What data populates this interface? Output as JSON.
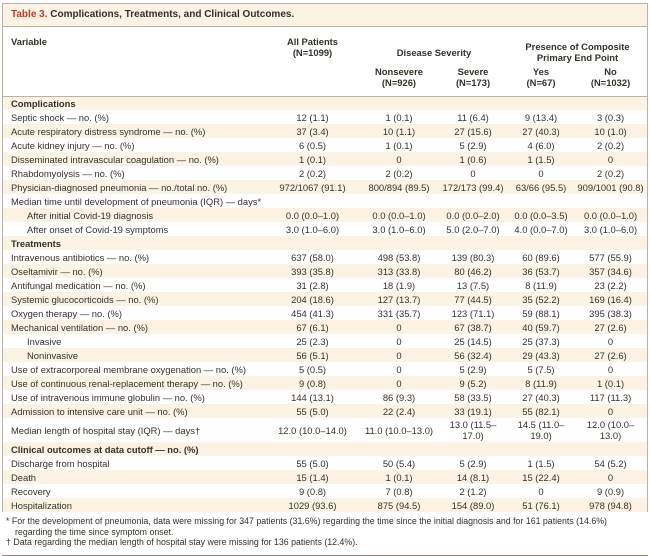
{
  "colors": {
    "accent_red": "#b73a2e",
    "row_cream": "#fcf3e4",
    "rule_gray": "#b9b3a7",
    "text": "#35312a"
  },
  "table": {
    "title_prefix": "Table 3.",
    "title_text": "Complications, Treatments, and Clinical Outcomes.",
    "header": {
      "variable": "Variable",
      "all_patients": "All Patients\n(N=1099)",
      "disease_severity": "Disease Severity",
      "composite_endpoint": "Presence of Composite Primary End Point",
      "subcols": [
        "Nonsevere\n(N=926)",
        "Severe\n(N=173)",
        "Yes\n(N=67)",
        "No\n(N=1032)"
      ]
    },
    "rows": [
      {
        "type": "section",
        "label": "Complications"
      },
      {
        "type": "data",
        "label": "Septic shock — no. (%)",
        "values": [
          "12 (1.1)",
          "1 (0.1)",
          "11 (6.4)",
          "9 (13.4)",
          "3 (0.3)"
        ]
      },
      {
        "type": "data",
        "label": "Acute respiratory distress syndrome — no. (%)",
        "values": [
          "37 (3.4)",
          "10 (1.1)",
          "27 (15.6)",
          "27 (40.3)",
          "10 (1.0)"
        ]
      },
      {
        "type": "data",
        "label": "Acute kidney injury — no. (%)",
        "values": [
          "6 (0.5)",
          "1 (0.1)",
          "5 (2.9)",
          "4 (6.0)",
          "2 (0.2)"
        ]
      },
      {
        "type": "data",
        "label": "Disseminated intravascular coagulation — no. (%)",
        "values": [
          "1 (0.1)",
          "0",
          "1 (0.6)",
          "1 (1.5)",
          "0"
        ]
      },
      {
        "type": "data",
        "label": "Rhabdomyolysis — no. (%)",
        "values": [
          "2 (0.2)",
          "2 (0.2)",
          "0",
          "0",
          "2 (0.2)"
        ]
      },
      {
        "type": "data",
        "label": "Physician-diagnosed pneumonia — no./total no. (%)",
        "values": [
          "972/1067 (91.1)",
          "800/894 (89.5)",
          "172/173 (99.4)",
          "63/66 (95.5)",
          "909/1001 (90.8)"
        ]
      },
      {
        "type": "label",
        "label": "Median time until development of pneumonia (IQR) — days*"
      },
      {
        "type": "data",
        "indent": true,
        "label": "After initial Covid-19 diagnosis",
        "values": [
          "0.0 (0.0–1.0)",
          "0.0 (0.0–1.0)",
          "0.0 (0.0–2.0)",
          "0.0 (0.0–3.5)",
          "0.0 (0.0–1.0)"
        ]
      },
      {
        "type": "data",
        "indent": true,
        "label": "After onset of Covid-19 symptoms",
        "values": [
          "3.0 (1.0–6.0)",
          "3.0 (1.0–6.0)",
          "5.0 (2.0–7.0)",
          "4.0 (0.0–7.0)",
          "3.0 (1.0–6.0)"
        ]
      },
      {
        "type": "section",
        "label": "Treatments"
      },
      {
        "type": "data",
        "label": "Intravenous antibiotics — no. (%)",
        "values": [
          "637 (58.0)",
          "498 (53.8)",
          "139 (80.3)",
          "60 (89.6)",
          "577 (55.9)"
        ]
      },
      {
        "type": "data",
        "label": "Oseltamivir — no. (%)",
        "values": [
          "393 (35.8)",
          "313 (33.8)",
          "80 (46.2)",
          "36 (53.7)",
          "357 (34.6)"
        ]
      },
      {
        "type": "data",
        "label": "Antifungal medication — no. (%)",
        "values": [
          "31 (2.8)",
          "18 (1.9)",
          "13 (7.5)",
          "8 (11.9)",
          "23 (2.2)"
        ]
      },
      {
        "type": "data",
        "label": "Systemic glucocorticoids — no. (%)",
        "values": [
          "204 (18.6)",
          "127 (13.7)",
          "77 (44.5)",
          "35 (52.2)",
          "169 (16.4)"
        ]
      },
      {
        "type": "data",
        "label": "Oxygen therapy — no. (%)",
        "values": [
          "454 (41.3)",
          "331 (35.7)",
          "123 (71.1)",
          "59 (88.1)",
          "395 (38.3)"
        ]
      },
      {
        "type": "data",
        "label": "Mechanical ventilation — no. (%)",
        "values": [
          "67 (6.1)",
          "0",
          "67 (38.7)",
          "40 (59.7)",
          "27 (2.6)"
        ]
      },
      {
        "type": "data",
        "indent": true,
        "label": "Invasive",
        "values": [
          "25 (2.3)",
          "0",
          "25 (14.5)",
          "25 (37.3)",
          "0"
        ]
      },
      {
        "type": "data",
        "indent": true,
        "label": "Noninvasive",
        "values": [
          "56 (5.1)",
          "0",
          "56 (32.4)",
          "29 (43.3)",
          "27 (2.6)"
        ]
      },
      {
        "type": "data",
        "label": "Use of extracorporeal membrane oxygenation — no. (%)",
        "values": [
          "5 (0.5)",
          "0",
          "5 (2.9)",
          "5 (7.5)",
          "0"
        ]
      },
      {
        "type": "data",
        "label": "Use of continuous renal-replacement therapy — no. (%)",
        "values": [
          "9 (0.8)",
          "0",
          "9 (5.2)",
          "8 (11.9)",
          "1 (0.1)"
        ]
      },
      {
        "type": "data",
        "label": "Use of intravenous immune globulin — no. (%)",
        "values": [
          "144 (13.1)",
          "86 (9.3)",
          "58 (33.5)",
          "27 (40.3)",
          "117 (11.3)"
        ]
      },
      {
        "type": "data",
        "label": "Admission to intensive care unit — no. (%)",
        "values": [
          "55 (5.0)",
          "22 (2.4)",
          "33 (19.1)",
          "55 (82.1)",
          "0"
        ]
      },
      {
        "type": "data",
        "label": "Median length of hospital stay (IQR) — days†",
        "values": [
          "12.0 (10.0–14.0)",
          "11.0 (10.0–13.0)",
          "13.0 (11.5–17.0)",
          "14.5 (11.0–19.0)",
          "12.0 (10.0–13.0)"
        ]
      },
      {
        "type": "section",
        "label": "Clinical outcomes at data cutoff — no. (%)"
      },
      {
        "type": "data",
        "label": "Discharge from hospital",
        "values": [
          "55 (5.0)",
          "50 (5.4)",
          "5 (2.9)",
          "1 (1.5)",
          "54 (5.2)"
        ]
      },
      {
        "type": "data",
        "label": "Death",
        "values": [
          "15 (1.4)",
          "1 (0.1)",
          "14 (8.1)",
          "15 (22.4)",
          "0"
        ]
      },
      {
        "type": "data",
        "label": "Recovery",
        "values": [
          "9 (0.8)",
          "7 (0.8)",
          "2 (1.2)",
          "0",
          "9 (0.9)"
        ]
      },
      {
        "type": "data",
        "label": "Hospitalization",
        "values": [
          "1029 (93.6)",
          "875 (94.5)",
          "154 (89.0)",
          "51 (76.1)",
          "978 (94.8)"
        ]
      }
    ],
    "footnotes": [
      "* For the development of pneumonia, data were missing for 347 patients (31.6%) regarding the time since the initial diagnosis and for 161 patients (14.6%) regarding the time since symptom onset.",
      "† Data regarding the median length of hospital stay were missing for 136 patients (12.4%)."
    ]
  }
}
